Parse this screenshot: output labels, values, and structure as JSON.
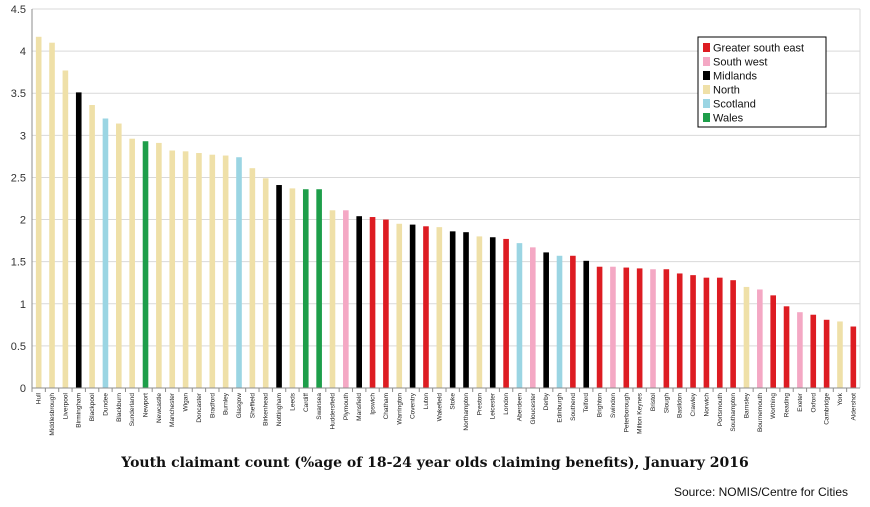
{
  "chart_data": {
    "type": "bar",
    "title": "Youth claimant count (%age of 18-24 year olds claiming benefits), January 2016",
    "source": "Source: NOMIS/Centre for Cities",
    "ylim": [
      0,
      4.5
    ],
    "yticks": [
      "0",
      "0.5",
      "1",
      "1.5",
      "2",
      "2.5",
      "3",
      "3.5",
      "4",
      "4.5"
    ],
    "grid": true,
    "legend_position": "top-right",
    "legend": [
      {
        "name": "Greater south east",
        "color": "#dd1c22"
      },
      {
        "name": "South west",
        "color": "#f4a8c4"
      },
      {
        "name": "Midlands",
        "color": "#000000"
      },
      {
        "name": "North",
        "color": "#efe0a8"
      },
      {
        "name": "Scotland",
        "color": "#9bd5e3"
      },
      {
        "name": "Wales",
        "color": "#1e9e4a"
      }
    ],
    "categories": [
      "Hull",
      "Middlesbrough",
      "Liverpool",
      "Birmingham",
      "Blackpool",
      "Dundee",
      "Blackburn",
      "Sunderland",
      "Newport",
      "Newcastle",
      "Manchester",
      "Wigan",
      "Doncaster",
      "Bradford",
      "Burnley",
      "Glasgow",
      "Sheffield",
      "Birkenhead",
      "Nottingham",
      "Leeds",
      "Cardiff",
      "Swansea",
      "Huddersfield",
      "Plymouth",
      "Mansfield",
      "Ipswich",
      "Chatham",
      "Warrington",
      "Coventry",
      "Luton",
      "Wakefield",
      "Stoke",
      "Northampton",
      "Preston",
      "Leicester",
      "London",
      "Aberdeen",
      "Gloucester",
      "Derby",
      "Edinburgh",
      "Southend",
      "Telford",
      "Brighton",
      "Swindon",
      "Peterborough",
      "Milton Keynes",
      "Bristol",
      "Slough",
      "Basildon",
      "Crawley",
      "Norwich",
      "Portsmouth",
      "Southampton",
      "Barnsley",
      "Bournemouth",
      "Worthing",
      "Reading",
      "Exeter",
      "Oxford",
      "Cambridge",
      "York",
      "Aldershot"
    ],
    "values": [
      4.17,
      4.1,
      3.77,
      3.51,
      3.36,
      3.2,
      3.14,
      2.96,
      2.93,
      2.91,
      2.82,
      2.81,
      2.79,
      2.77,
      2.76,
      2.74,
      2.61,
      2.49,
      2.41,
      2.37,
      2.36,
      2.36,
      2.11,
      2.11,
      2.04,
      2.03,
      2.0,
      1.95,
      1.94,
      1.92,
      1.91,
      1.86,
      1.85,
      1.8,
      1.79,
      1.77,
      1.72,
      1.67,
      1.61,
      1.57,
      1.57,
      1.51,
      1.44,
      1.44,
      1.43,
      1.42,
      1.41,
      1.41,
      1.36,
      1.34,
      1.31,
      1.31,
      1.28,
      1.2,
      1.17,
      1.1,
      0.97,
      0.9,
      0.87,
      0.81,
      0.79,
      0.73
    ],
    "regions": [
      "North",
      "North",
      "North",
      "Midlands",
      "North",
      "Scotland",
      "North",
      "North",
      "Wales",
      "North",
      "North",
      "North",
      "North",
      "North",
      "North",
      "Scotland",
      "North",
      "North",
      "Midlands",
      "North",
      "Wales",
      "Wales",
      "North",
      "South west",
      "Midlands",
      "Greater south east",
      "Greater south east",
      "North",
      "Midlands",
      "Greater south east",
      "North",
      "Midlands",
      "Midlands",
      "North",
      "Midlands",
      "Greater south east",
      "Scotland",
      "South west",
      "Midlands",
      "Scotland",
      "Greater south east",
      "Midlands",
      "Greater south east",
      "South west",
      "Greater south east",
      "Greater south east",
      "South west",
      "Greater south east",
      "Greater south east",
      "Greater south east",
      "Greater south east",
      "Greater south east",
      "Greater south east",
      "North",
      "South west",
      "Greater south east",
      "Greater south east",
      "South west",
      "Greater south east",
      "Greater south east",
      "North",
      "Greater south east"
    ]
  }
}
